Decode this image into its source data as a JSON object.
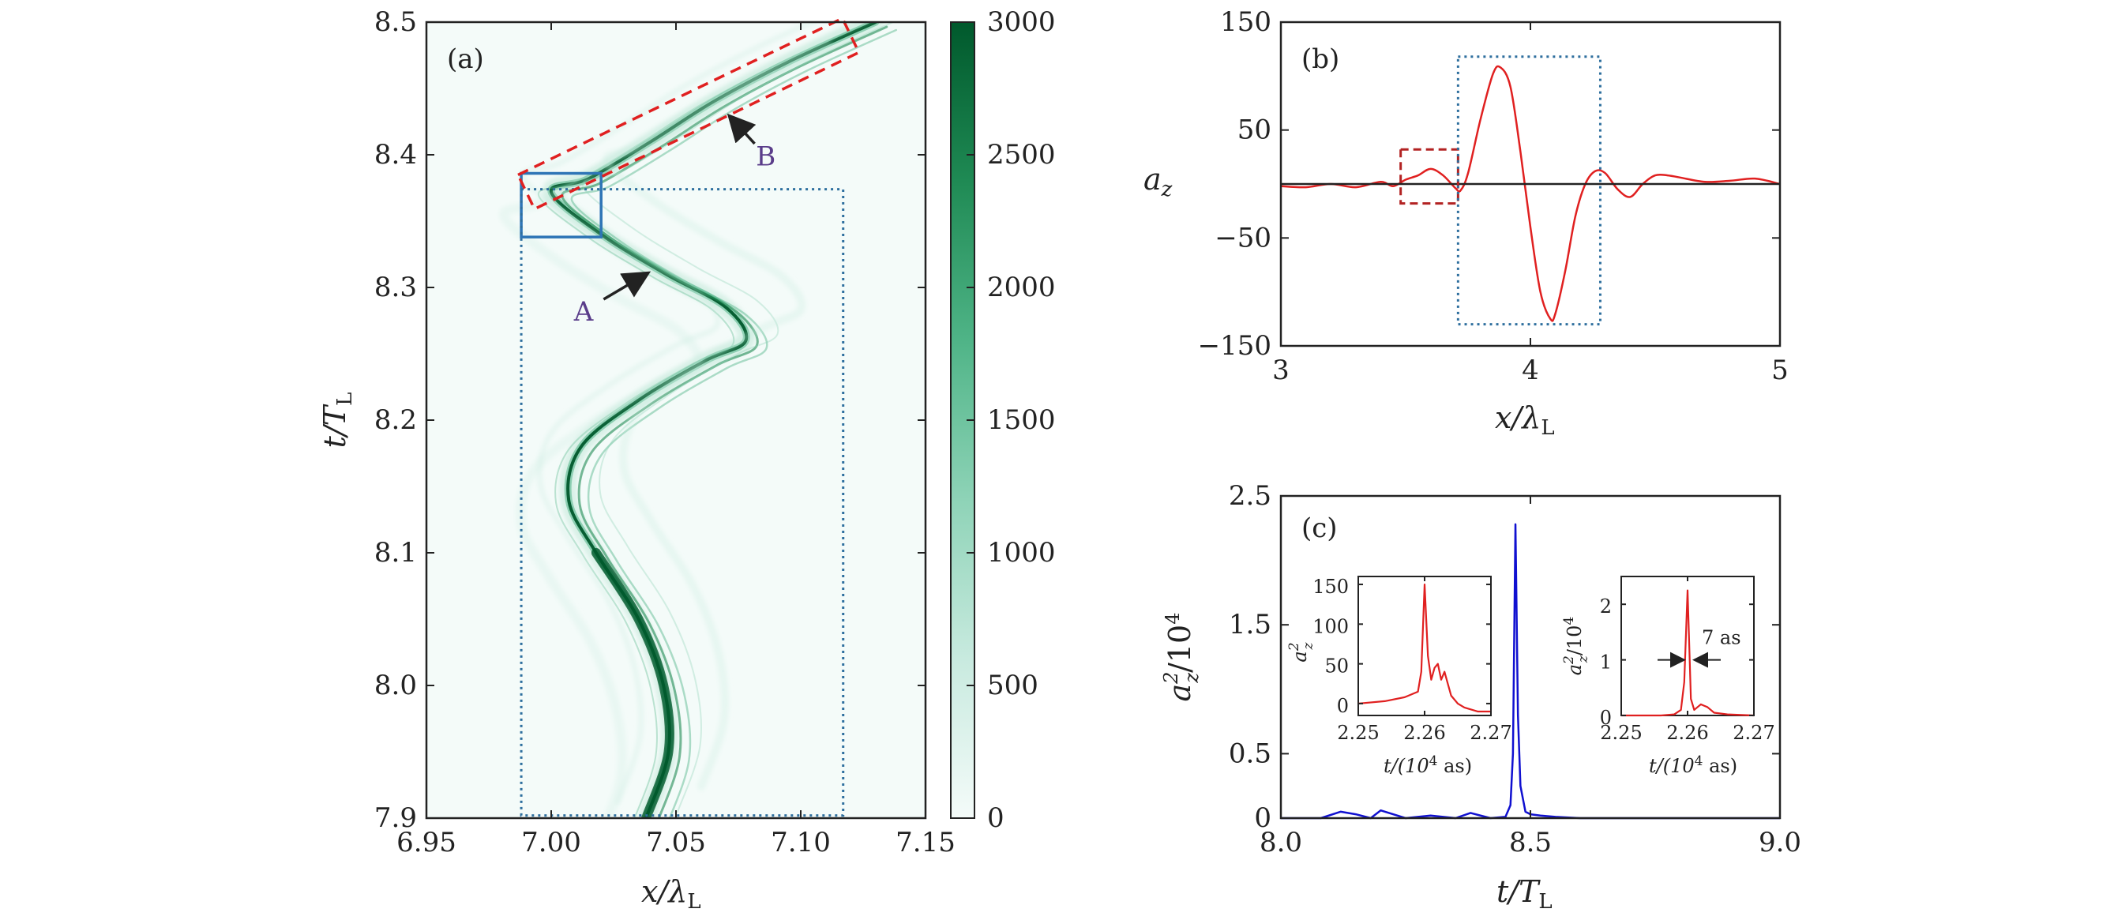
{
  "chart_data": [
    {
      "panel": "(a)",
      "type": "heatmap",
      "xlabel": "x/λ",
      "xlabel_sub": "L",
      "ylabel": "t/T",
      "ylabel_sub": "L",
      "xlim": [
        6.95,
        7.15
      ],
      "ylim": [
        7.9,
        8.5
      ],
      "xticks": [
        "6.95",
        "7.00",
        "7.05",
        "7.10",
        "7.15"
      ],
      "yticks": [
        "7.9",
        "8.0",
        "8.1",
        "8.2",
        "8.3",
        "8.4",
        "8.5"
      ],
      "colorbar": {
        "range": [
          0,
          3000
        ],
        "ticks": [
          "0",
          "500",
          "1000",
          "1500",
          "2000",
          "2500",
          "3000"
        ],
        "colors": [
          "#f4fbf9",
          "#c8eadf",
          "#8ed3b7",
          "#4fb487",
          "#1f8a54",
          "#00592c"
        ]
      },
      "annotations": [
        {
          "label": "A",
          "text_at": [
            7.013,
            8.275
          ],
          "arrow_to": [
            7.038,
            8.31
          ]
        },
        {
          "label": "B",
          "text_at": [
            7.086,
            8.392
          ],
          "arrow_to": [
            7.072,
            8.428
          ]
        }
      ],
      "regions": [
        {
          "name": "solid-box",
          "x": [
            6.988,
            7.02
          ],
          "y": [
            8.338,
            8.386
          ],
          "color": "#2e75b6"
        },
        {
          "name": "dotted-box",
          "x": [
            6.988,
            7.117
          ],
          "y": [
            7.902,
            8.374
          ],
          "color": "#2e6f9e"
        }
      ],
      "main_trajectory": [
        [
          7.038,
          7.9
        ],
        [
          7.047,
          7.95
        ],
        [
          7.045,
          8.0
        ],
        [
          7.035,
          8.05
        ],
        [
          7.018,
          8.1
        ],
        [
          7.007,
          8.14
        ],
        [
          7.012,
          8.18
        ],
        [
          7.035,
          8.215
        ],
        [
          7.062,
          8.245
        ],
        [
          7.078,
          8.26
        ],
        [
          7.07,
          8.285
        ],
        [
          7.046,
          8.31
        ],
        [
          7.02,
          8.34
        ],
        [
          7.0,
          8.372
        ],
        [
          7.015,
          8.382
        ],
        [
          7.04,
          8.41
        ],
        [
          7.065,
          8.44
        ],
        [
          7.095,
          8.47
        ],
        [
          7.13,
          8.5
        ]
      ]
    },
    {
      "panel": "(b)",
      "type": "line",
      "xlabel": "x/λ",
      "xlabel_sub": "L",
      "ylabel": "a",
      "ylabel_sub": "z",
      "xlim": [
        3,
        5
      ],
      "ylim": [
        -150,
        150
      ],
      "xticks": [
        "3",
        "4",
        "5"
      ],
      "yticks": [
        "150",
        "50",
        "−50",
        "−150"
      ],
      "series": [
        {
          "color": "#e02020",
          "x": [
            3.0,
            3.1,
            3.2,
            3.3,
            3.4,
            3.45,
            3.5,
            3.55,
            3.6,
            3.65,
            3.7,
            3.72,
            3.75,
            3.8,
            3.85,
            3.88,
            3.92,
            3.96,
            4.0,
            4.04,
            4.08,
            4.1,
            4.14,
            4.18,
            4.22,
            4.26,
            4.3,
            4.35,
            4.4,
            4.45,
            4.5,
            4.55,
            4.6,
            4.7,
            4.8,
            4.9,
            5.0
          ],
          "y": [
            -2,
            -3,
            0,
            -3,
            2,
            -2,
            4,
            8,
            14,
            8,
            -4,
            -6,
            10,
            60,
            102,
            108,
            90,
            30,
            -40,
            -100,
            -125,
            -120,
            -80,
            -30,
            0,
            12,
            10,
            -5,
            -12,
            0,
            8,
            8,
            6,
            2,
            3,
            5,
            0
          ]
        },
        {
          "color": "#222222",
          "x": [
            3,
            5
          ],
          "y": [
            0,
            0
          ]
        }
      ],
      "regions": [
        {
          "name": "dashed-box",
          "x": [
            3.48,
            3.71
          ],
          "y": [
            -18,
            32
          ],
          "color": "#b22222"
        },
        {
          "name": "dotted-box",
          "x": [
            3.71,
            4.28
          ],
          "y": [
            -130,
            118
          ],
          "color": "#2e6f9e"
        }
      ]
    },
    {
      "panel": "(c)",
      "type": "line",
      "xlabel": "t/T",
      "xlabel_sub": "L",
      "ylabel": "a",
      "ylabel_sup": "2",
      "ylabel_sub": "z",
      "ylabel_suffix": "/10",
      "ylabel_suffix_sup": "4",
      "xlim": [
        8.0,
        9.0
      ],
      "ylim": [
        0,
        2.5
      ],
      "xticks": [
        "8.0",
        "8.5",
        "9.0"
      ],
      "yticks": [
        "2.5",
        "1.5",
        "0.5",
        "0"
      ],
      "series": [
        {
          "color": "#1010d0",
          "x": [
            8.0,
            8.08,
            8.12,
            8.15,
            8.18,
            8.2,
            8.25,
            8.3,
            8.35,
            8.38,
            8.4,
            8.42,
            8.45,
            8.46,
            8.465,
            8.47,
            8.475,
            8.48,
            8.49,
            8.5,
            8.52,
            8.55,
            8.6,
            8.7,
            8.8,
            9.0
          ],
          "y": [
            0.0,
            0.0,
            0.05,
            0.03,
            0.0,
            0.06,
            0.0,
            0.02,
            0.0,
            0.04,
            0.02,
            0.0,
            0.01,
            0.1,
            0.5,
            2.28,
            0.8,
            0.25,
            0.05,
            0.03,
            0.02,
            0.01,
            0.0,
            0.0,
            0.0,
            0.0
          ]
        }
      ],
      "insets": [
        {
          "name": "left-inset",
          "xlabel": "t/(10",
          "xlabel_sup": "4",
          "xlabel_end": " as)",
          "ylabel": "a",
          "ylabel_sup": "2",
          "ylabel_sub": "z",
          "xlim": [
            2.25,
            2.27
          ],
          "ylim": [
            -15,
            160
          ],
          "xticks": [
            "2.25",
            "2.26",
            "2.27"
          ],
          "yticks": [
            "150",
            "100",
            "50",
            "0"
          ],
          "series": {
            "color": "#e02020",
            "x": [
              2.25,
              2.254,
              2.257,
              2.259,
              2.2595,
              2.26,
              2.2605,
              2.261,
              2.2615,
              2.262,
              2.2625,
              2.263,
              2.2635,
              2.264,
              2.265,
              2.266,
              2.268,
              2.27
            ],
            "y": [
              0,
              3,
              8,
              15,
              40,
              150,
              60,
              30,
              45,
              50,
              30,
              40,
              25,
              10,
              0,
              -5,
              -10,
              -10
            ]
          }
        },
        {
          "name": "right-inset",
          "xlabel": "t/(10",
          "xlabel_sup": "4",
          "xlabel_end": " as)",
          "ylabel": "a",
          "ylabel_sup": "2",
          "ylabel_sub": "z",
          "ylabel_suffix": "/10",
          "ylabel_suffix_sup": "4",
          "xlim": [
            2.25,
            2.27
          ],
          "ylim": [
            0,
            2.5
          ],
          "xticks": [
            "2.25",
            "2.26",
            "2.27"
          ],
          "yticks": [
            "2",
            "1",
            "0"
          ],
          "annotation": "7 as",
          "series": {
            "color": "#e02020",
            "x": [
              2.25,
              2.256,
              2.258,
              2.259,
              2.2595,
              2.26,
              2.2605,
              2.261,
              2.262,
              2.263,
              2.264,
              2.266,
              2.27
            ],
            "y": [
              0,
              0,
              0.02,
              0.1,
              0.6,
              2.25,
              0.3,
              0.1,
              0.2,
              0.15,
              0.05,
              0.02,
              0.0
            ]
          }
        }
      ]
    }
  ]
}
